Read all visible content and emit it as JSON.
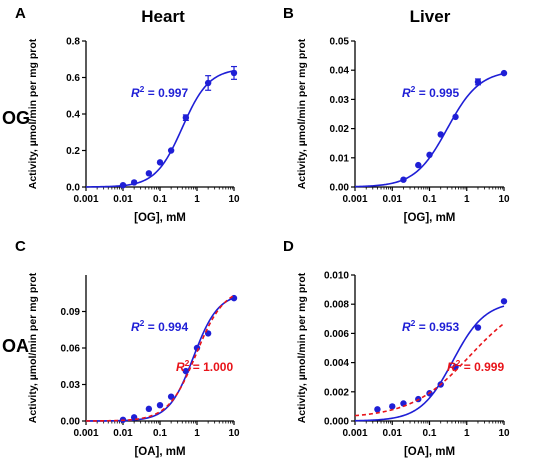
{
  "figure": {
    "column_titles": [
      "Heart",
      "Liver"
    ],
    "row_labels": [
      "OG",
      "OA"
    ]
  },
  "colors": {
    "blue": "#1f1fd6",
    "red": "#e8141a",
    "axis": "#000000"
  },
  "chart_data": [
    {
      "type": "scatter",
      "panel": "A",
      "xlabel": "[OG], mM",
      "ylabel": "Activity, µmol/min per mg prot",
      "x_scale": "log",
      "xlim": [
        0.001,
        10
      ],
      "ylim": [
        0,
        0.8
      ],
      "x_ticks": [
        0.001,
        0.01,
        0.1,
        1,
        10
      ],
      "x_tick_labels": [
        "0.001",
        "0.01",
        "0.1",
        "1",
        "10"
      ],
      "y_ticks": [
        0,
        0.2,
        0.4,
        0.6,
        0.8
      ],
      "y_tick_labels": [
        "0.0",
        "0.2",
        "0.4",
        "0.6",
        "0.8"
      ],
      "series": [
        {
          "color": "#1f1fd6",
          "x": [
            0.01,
            0.02,
            0.05,
            0.1,
            0.2,
            0.5,
            2,
            10
          ],
          "y": [
            0.01,
            0.025,
            0.075,
            0.135,
            0.2,
            0.38,
            0.57,
            0.625
          ],
          "error": [
            0,
            0,
            0,
            0,
            0,
            0.015,
            0.04,
            0.035
          ],
          "fit": {
            "style": "solid",
            "vmax": 0.65,
            "km": 0.4,
            "n": 1.2
          },
          "r2_prefix": "R",
          "r2_exp": "2",
          "r2_value": " = 0.997"
        }
      ]
    },
    {
      "type": "scatter",
      "panel": "B",
      "xlabel": "[OG], mM",
      "ylabel": "Activity, µmol/min per mg prot",
      "x_scale": "log",
      "xlim": [
        0.001,
        10
      ],
      "ylim": [
        0,
        0.05
      ],
      "x_ticks": [
        0.001,
        0.01,
        0.1,
        1,
        10
      ],
      "x_tick_labels": [
        "0.001",
        "0.01",
        "0.1",
        "1",
        "10"
      ],
      "y_ticks": [
        0,
        0.01,
        0.02,
        0.03,
        0.04,
        0.05
      ],
      "y_tick_labels": [
        "0.00",
        "0.01",
        "0.02",
        "0.03",
        "0.04",
        "0.05"
      ],
      "series": [
        {
          "color": "#1f1fd6",
          "x": [
            0.02,
            0.05,
            0.1,
            0.2,
            0.5,
            2,
            10
          ],
          "y": [
            0.0025,
            0.0075,
            0.011,
            0.018,
            0.024,
            0.036,
            0.039
          ],
          "error": [
            0,
            0,
            0,
            0,
            0,
            0.001,
            0
          ],
          "fit": {
            "style": "solid",
            "vmax": 0.04,
            "km": 0.3,
            "n": 1.0
          },
          "r2_prefix": "R",
          "r2_exp": "2",
          "r2_value": " = 0.995"
        }
      ]
    },
    {
      "type": "scatter",
      "panel": "C",
      "xlabel": "[OA], mM",
      "ylabel": "Activity, µmol/min per mg prot",
      "x_scale": "log",
      "xlim": [
        0.001,
        10
      ],
      "ylim": [
        0,
        0.12
      ],
      "x_ticks": [
        0.001,
        0.01,
        0.1,
        1,
        10
      ],
      "x_tick_labels": [
        "0.001",
        "0.01",
        "0.1",
        "1",
        "10"
      ],
      "y_ticks": [
        0,
        0.03,
        0.06,
        0.09
      ],
      "y_tick_labels": [
        "0.00",
        "0.03",
        "0.06",
        "0.09"
      ],
      "series": [
        {
          "color": "#1f1fd6",
          "x": [
            0.01,
            0.02,
            0.05,
            0.1,
            0.2,
            0.5,
            1,
            2,
            10
          ],
          "y": [
            0.001,
            0.003,
            0.01,
            0.013,
            0.02,
            0.041,
            0.06,
            0.072,
            0.101
          ],
          "error": [
            0,
            0,
            0,
            0,
            0,
            0,
            0,
            0,
            0
          ],
          "fit": {
            "style": "solid",
            "vmax": 0.105,
            "km": 0.8,
            "n": 1.3
          },
          "r2_prefix": "R",
          "r2_exp": "2",
          "r2_value": " = 0.994"
        },
        {
          "color": "#e8141a",
          "fit": {
            "style": "dashed",
            "vmax": 0.11,
            "km": 0.95,
            "n": 1.15
          },
          "r2_prefix": "R",
          "r2_exp": "2",
          "r2_value": " = 1.000"
        }
      ]
    },
    {
      "type": "scatter",
      "panel": "D",
      "xlabel": "[OA], mM",
      "ylabel": "Activity, µmol/min per mg prot",
      "x_scale": "log",
      "xlim": [
        0.001,
        10
      ],
      "ylim": [
        0,
        0.01
      ],
      "x_ticks": [
        0.001,
        0.01,
        0.1,
        1,
        10
      ],
      "x_tick_labels": [
        "0.001",
        "0.01",
        "0.1",
        "1",
        "10"
      ],
      "y_ticks": [
        0,
        0.002,
        0.004,
        0.006,
        0.008,
        0.01
      ],
      "y_tick_labels": [
        "0.000",
        "0.002",
        "0.004",
        "0.006",
        "0.008",
        "0.010"
      ],
      "series": [
        {
          "color": "#1f1fd6",
          "x": [
            0.004,
            0.01,
            0.02,
            0.05,
            0.1,
            0.2,
            0.5,
            2,
            10
          ],
          "y": [
            0.0008,
            0.001,
            0.0012,
            0.0015,
            0.0019,
            0.0025,
            0.0037,
            0.0064,
            0.0082
          ],
          "error": [
            0,
            0,
            0,
            0,
            0,
            0,
            0,
            0,
            0
          ],
          "fit": {
            "style": "solid",
            "vmax": 0.0082,
            "km": 0.42,
            "n": 1.0
          },
          "r2_prefix": "R",
          "r2_exp": "2",
          "r2_value": " = 0.953"
        },
        {
          "color": "#e8141a",
          "fit": {
            "style": "dashed",
            "linear": true
          },
          "r2_prefix": "R",
          "r2_exp": "2",
          "r2_value": " = 0.999"
        }
      ]
    }
  ]
}
